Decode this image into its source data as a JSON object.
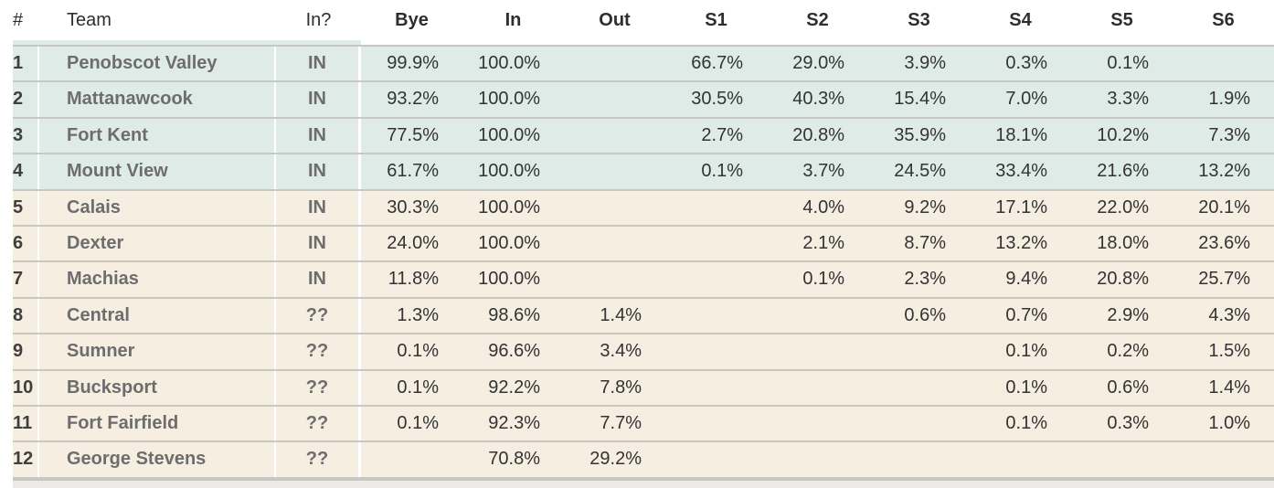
{
  "chart_data": {
    "type": "table",
    "columns": [
      "#",
      "Team",
      "In?",
      "Bye",
      "In",
      "Out",
      "S1",
      "S2",
      "S3",
      "S4",
      "S5",
      "S6"
    ],
    "rows": [
      {
        "rank": "1",
        "team": "Penobscot Valley",
        "status": "IN",
        "tint": "teal",
        "values": [
          "99.9%",
          "100.0%",
          "",
          "66.7%",
          "29.0%",
          "3.9%",
          "0.3%",
          "0.1%",
          ""
        ]
      },
      {
        "rank": "2",
        "team": "Mattanawcook",
        "status": "IN",
        "tint": "teal",
        "values": [
          "93.2%",
          "100.0%",
          "",
          "30.5%",
          "40.3%",
          "15.4%",
          "7.0%",
          "3.3%",
          "1.9%"
        ]
      },
      {
        "rank": "3",
        "team": "Fort Kent",
        "status": "IN",
        "tint": "teal",
        "values": [
          "77.5%",
          "100.0%",
          "",
          "2.7%",
          "20.8%",
          "35.9%",
          "18.1%",
          "10.2%",
          "7.3%"
        ]
      },
      {
        "rank": "4",
        "team": "Mount View",
        "status": "IN",
        "tint": "teal",
        "values": [
          "61.7%",
          "100.0%",
          "",
          "0.1%",
          "3.7%",
          "24.5%",
          "33.4%",
          "21.6%",
          "13.2%"
        ]
      },
      {
        "rank": "5",
        "team": "Calais",
        "status": "IN",
        "tint": "cream",
        "values": [
          "30.3%",
          "100.0%",
          "",
          "",
          "4.0%",
          "9.2%",
          "17.1%",
          "22.0%",
          "20.1%"
        ]
      },
      {
        "rank": "6",
        "team": "Dexter",
        "status": "IN",
        "tint": "cream",
        "values": [
          "24.0%",
          "100.0%",
          "",
          "",
          "2.1%",
          "8.7%",
          "13.2%",
          "18.0%",
          "23.6%"
        ]
      },
      {
        "rank": "7",
        "team": "Machias",
        "status": "IN",
        "tint": "cream",
        "values": [
          "11.8%",
          "100.0%",
          "",
          "",
          "0.1%",
          "2.3%",
          "9.4%",
          "20.8%",
          "25.7%"
        ]
      },
      {
        "rank": "8",
        "team": "Central",
        "status": "??",
        "tint": "cream",
        "values": [
          "1.3%",
          "98.6%",
          "1.4%",
          "",
          "",
          "0.6%",
          "0.7%",
          "2.9%",
          "4.3%"
        ]
      },
      {
        "rank": "9",
        "team": "Sumner",
        "status": "??",
        "tint": "cream",
        "values": [
          "0.1%",
          "96.6%",
          "3.4%",
          "",
          "",
          "",
          "0.1%",
          "0.2%",
          "1.5%"
        ]
      },
      {
        "rank": "10",
        "team": "Bucksport",
        "status": "??",
        "tint": "cream",
        "values": [
          "0.1%",
          "92.2%",
          "7.8%",
          "",
          "",
          "",
          "0.1%",
          "0.6%",
          "1.4%"
        ]
      },
      {
        "rank": "11",
        "team": "Fort Fairfield",
        "status": "??",
        "tint": "cream",
        "values": [
          "0.1%",
          "92.3%",
          "7.7%",
          "",
          "",
          "",
          "0.1%",
          "0.3%",
          "1.0%"
        ]
      },
      {
        "rank": "12",
        "team": "George Stevens",
        "status": "??",
        "tint": "cream",
        "values": [
          "",
          "70.8%",
          "29.2%",
          "",
          "",
          "",
          "",
          "",
          ""
        ]
      }
    ]
  },
  "colors": {
    "in_group_row": "#dfebe6",
    "bubble_group_row": "#f6eee0",
    "row_border": "#c9c9c4",
    "header_text": "#2e2e2e",
    "team_text": "#6d6d6d",
    "value_text": "#333333"
  }
}
